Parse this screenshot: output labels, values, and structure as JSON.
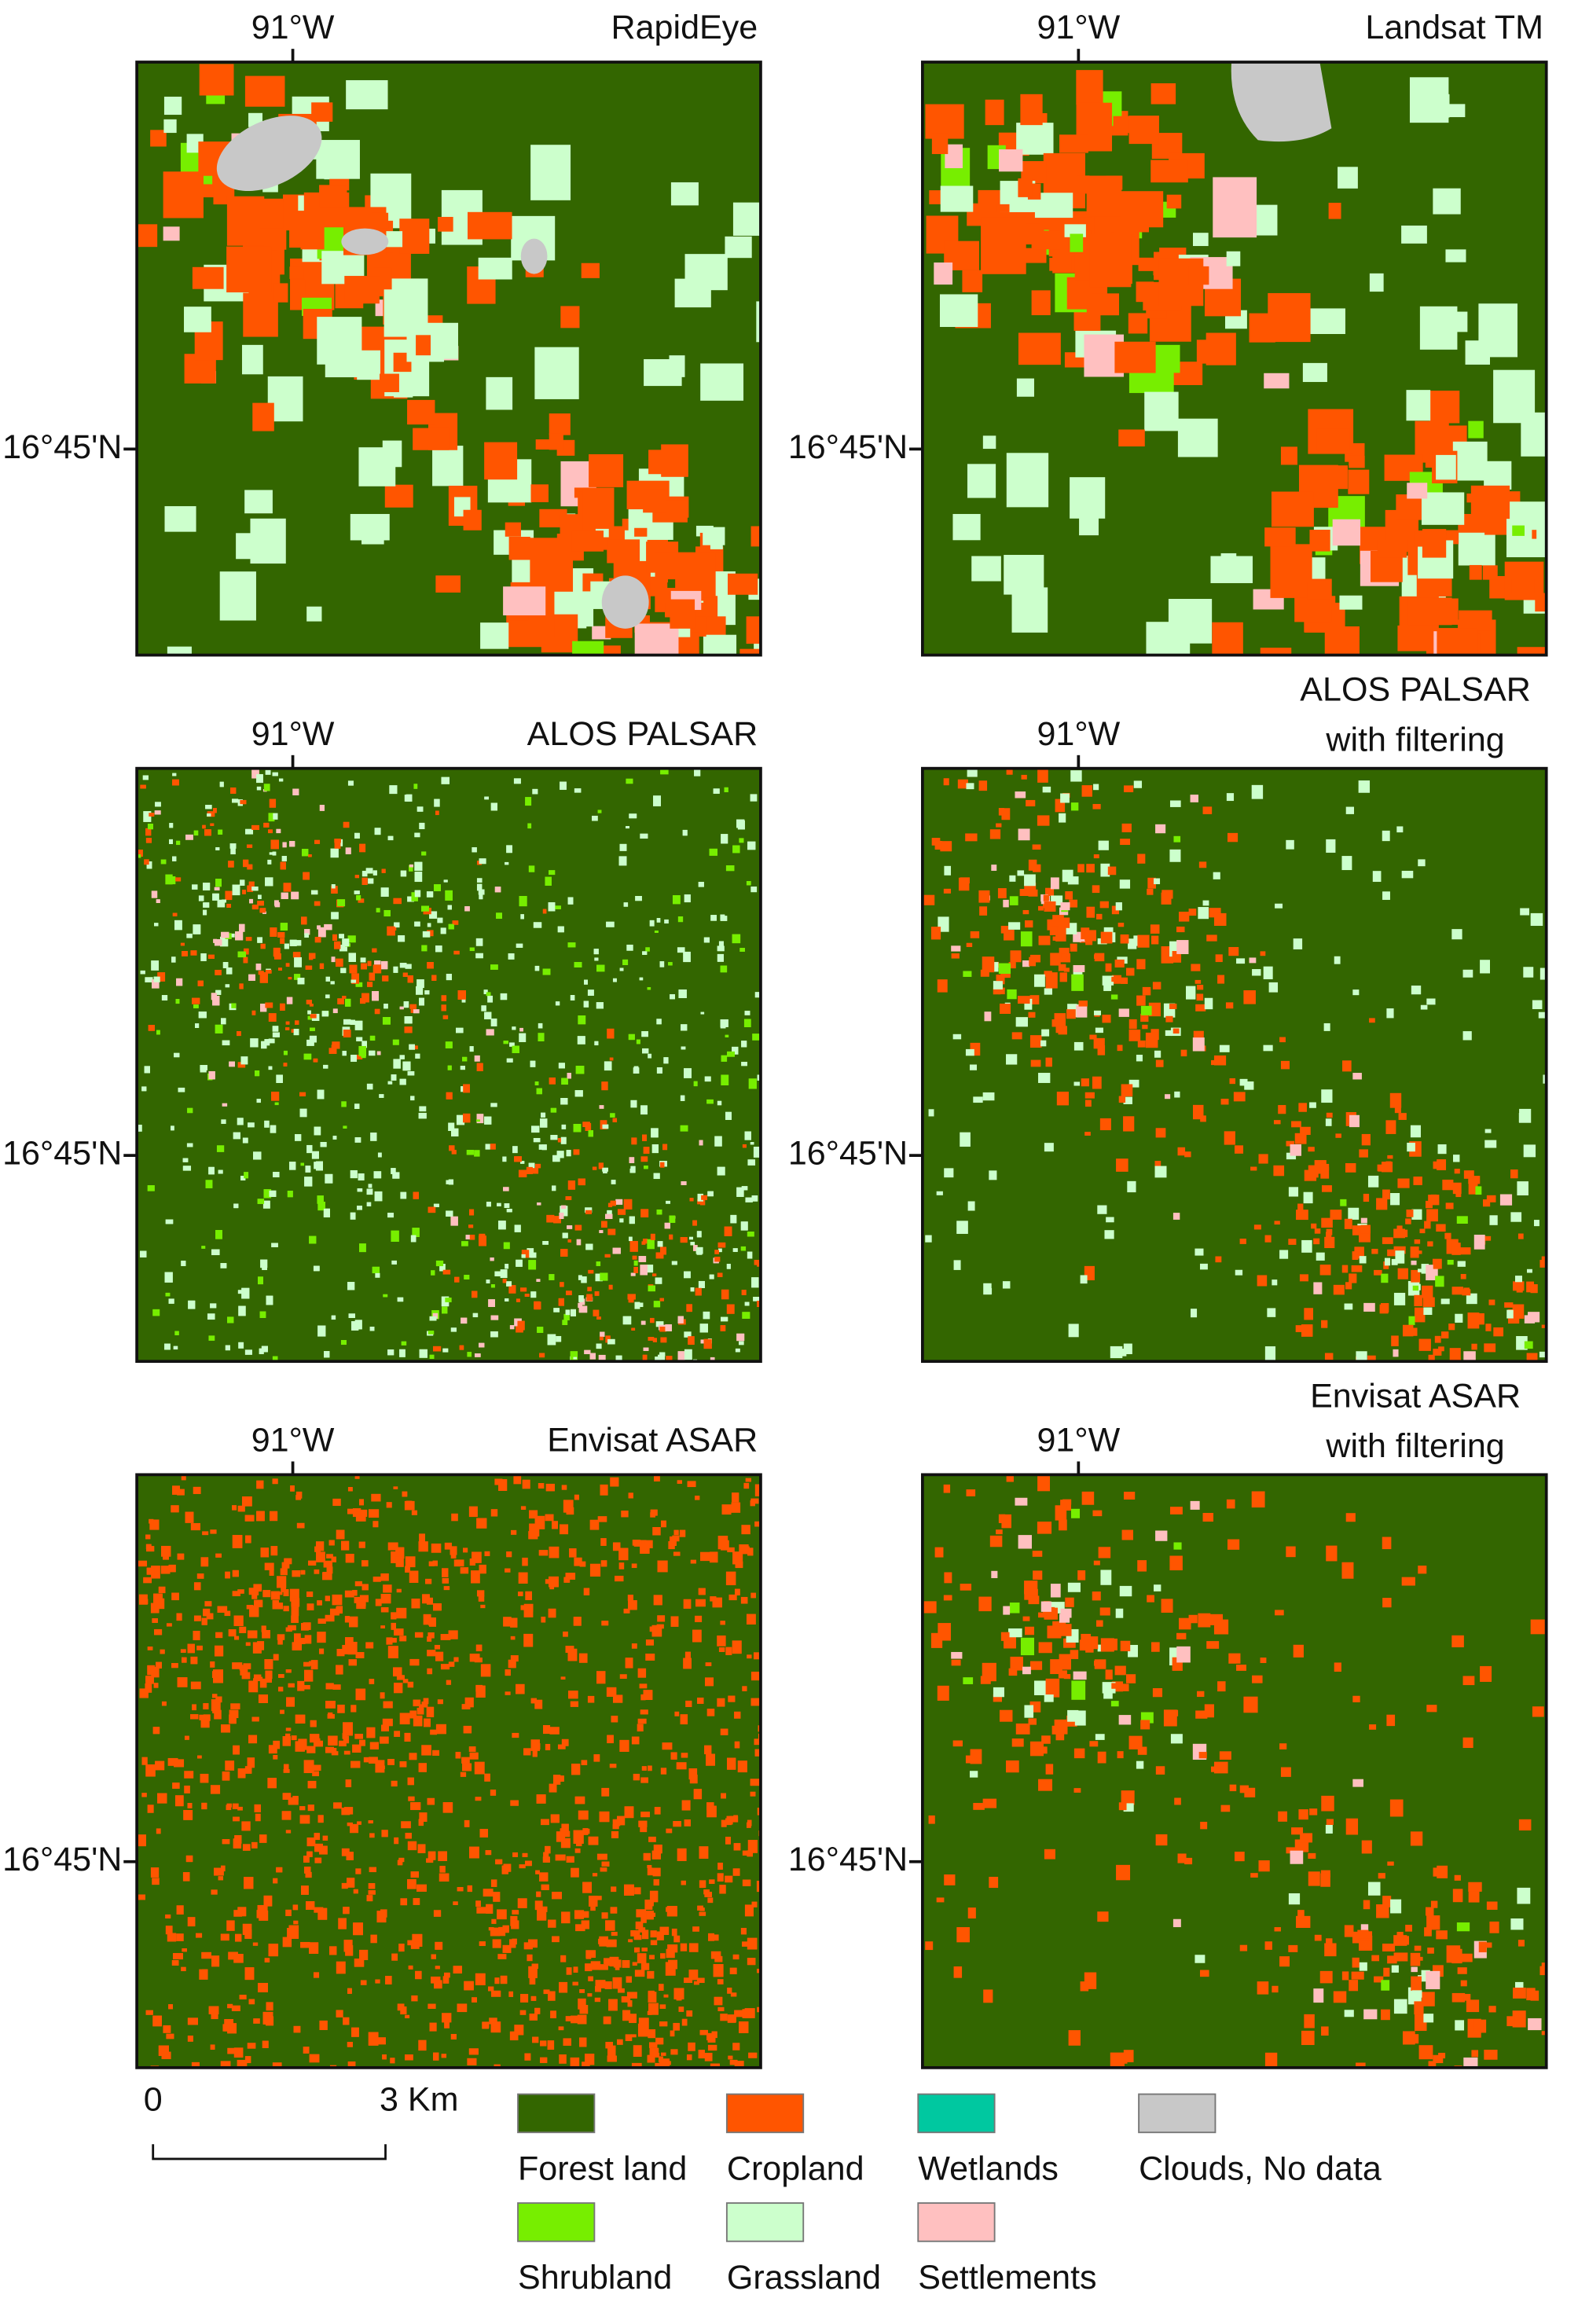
{
  "panels": [
    {
      "title": [
        "RapidEye"
      ],
      "lon_label": "91°W",
      "lat_label": "16°45'N"
    },
    {
      "title": [
        "Landsat TM"
      ],
      "lon_label": "91°W",
      "lat_label": "16°45'N"
    },
    {
      "title": [
        "ALOS PALSAR"
      ],
      "lon_label": "91°W",
      "lat_label": "16°45'N"
    },
    {
      "title": [
        "ALOS PALSAR",
        "with filtering"
      ],
      "lon_label": "91°W",
      "lat_label": "16°45'N"
    },
    {
      "title": [
        "Envisat ASAR"
      ],
      "lon_label": "91°W",
      "lat_label": "16°45'N"
    },
    {
      "title": [
        "Envisat ASAR",
        "with filtering"
      ],
      "lon_label": "91°W",
      "lat_label": "16°45'N"
    }
  ],
  "scale_bar": {
    "start": "0",
    "end": "3 Km"
  },
  "legend": [
    {
      "label": "Forest land",
      "color": "#336600"
    },
    {
      "label": "Cropland",
      "color": "#ff5500"
    },
    {
      "label": "Wetlands",
      "color": "#00c8a0"
    },
    {
      "label": "Clouds, No data",
      "color": "#c8c8c8"
    },
    {
      "label": "Shrubland",
      "color": "#77ee00"
    },
    {
      "label": "Grassland",
      "color": "#ccffcc"
    },
    {
      "label": "Settlements",
      "color": "#ffc0c0"
    }
  ]
}
